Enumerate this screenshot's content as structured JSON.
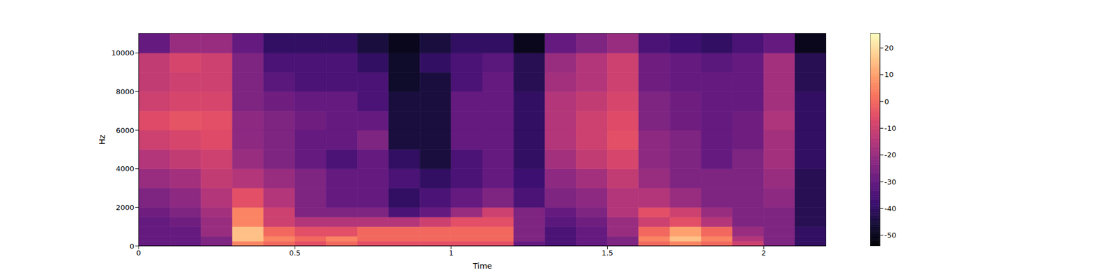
{
  "chart_data": {
    "type": "heatmap",
    "xlabel": "Time",
    "ylabel": "Hz",
    "xlim": [
      0,
      2.2
    ],
    "ylim": [
      0,
      11025
    ],
    "xticks": [
      0,
      0.5,
      1,
      1.5,
      2
    ],
    "yticks": [
      0,
      2000,
      4000,
      6000,
      8000,
      10000
    ],
    "x_edges": [
      0,
      0.1,
      0.2,
      0.3,
      0.4,
      0.5,
      0.6,
      0.7,
      0.8,
      0.9,
      1.0,
      1.1,
      1.2,
      1.3,
      1.4,
      1.5,
      1.6,
      1.7,
      1.8,
      1.9,
      2.0,
      2.1,
      2.2
    ],
    "y_edges": [
      0,
      250,
      500,
      1000,
      1500,
      2000,
      3000,
      4000,
      5000,
      6000,
      7000,
      8000,
      9000,
      10000,
      11025
    ],
    "cells": [
      [
        -30,
        -30,
        -25,
        5,
        0,
        -5,
        0,
        -5,
        -5,
        -5,
        -5,
        -5,
        -30,
        -35,
        -30,
        -25,
        0,
        5,
        0,
        -10,
        -25,
        -40
      ],
      [
        -30,
        -30,
        -25,
        15,
        5,
        0,
        5,
        0,
        0,
        0,
        0,
        0,
        -25,
        -35,
        -30,
        -25,
        5,
        15,
        5,
        -15,
        -25,
        -40
      ],
      [
        -30,
        -30,
        -20,
        15,
        0,
        -5,
        -5,
        0,
        0,
        0,
        0,
        0,
        -25,
        -35,
        -30,
        -20,
        0,
        10,
        0,
        -20,
        -25,
        -40
      ],
      [
        -30,
        -28,
        -20,
        5,
        -10,
        -15,
        -15,
        -15,
        -15,
        -10,
        -5,
        -5,
        -25,
        -32,
        -28,
        -20,
        -10,
        -5,
        -15,
        -25,
        -25,
        -42
      ],
      [
        -28,
        -25,
        -18,
        5,
        -10,
        -25,
        -25,
        -25,
        -35,
        -30,
        -20,
        -10,
        -25,
        -30,
        -25,
        -15,
        -5,
        -10,
        -20,
        -25,
        -25,
        -42
      ],
      [
        -25,
        -22,
        -15,
        -5,
        -15,
        -25,
        -30,
        -30,
        -40,
        -35,
        -30,
        -25,
        -35,
        -25,
        -22,
        -15,
        -15,
        -20,
        -25,
        -25,
        -22,
        -42
      ],
      [
        -20,
        -18,
        -12,
        -15,
        -20,
        -25,
        -30,
        -30,
        -35,
        -40,
        -35,
        -30,
        -38,
        -22,
        -18,
        -12,
        -20,
        -25,
        -25,
        -25,
        -20,
        -42
      ],
      [
        -15,
        -12,
        -10,
        -20,
        -25,
        -30,
        -35,
        -30,
        -40,
        -45,
        -35,
        -30,
        -40,
        -18,
        -12,
        -8,
        -22,
        -25,
        -30,
        -25,
        -18,
        -40
      ],
      [
        -10,
        -8,
        -6,
        -22,
        -25,
        -30,
        -30,
        -25,
        -45,
        -45,
        -30,
        -30,
        -40,
        -15,
        -10,
        -5,
        -22,
        -25,
        -30,
        -28,
        -18,
        -40
      ],
      [
        -6,
        -4,
        -5,
        -22,
        -25,
        -28,
        -30,
        -30,
        -45,
        -45,
        -30,
        -30,
        -40,
        -15,
        -10,
        -6,
        -25,
        -28,
        -30,
        -28,
        -16,
        -40
      ],
      [
        -10,
        -8,
        -8,
        -25,
        -28,
        -30,
        -30,
        -35,
        -45,
        -45,
        -30,
        -30,
        -40,
        -15,
        -12,
        -8,
        -25,
        -28,
        -30,
        -30,
        -18,
        -40
      ],
      [
        -12,
        -10,
        -10,
        -25,
        -32,
        -35,
        -35,
        -35,
        -48,
        -45,
        -35,
        -30,
        -42,
        -18,
        -15,
        -10,
        -28,
        -30,
        -30,
        -30,
        -18,
        -42
      ],
      [
        -12,
        -8,
        -10,
        -25,
        -35,
        -35,
        -35,
        -40,
        -48,
        -40,
        -35,
        -32,
        -42,
        -20,
        -15,
        -10,
        -28,
        -30,
        -32,
        -30,
        -18,
        -42
      ],
      [
        -30,
        -20,
        -20,
        -30,
        -40,
        -40,
        -40,
        -45,
        -50,
        -45,
        -40,
        -40,
        -50,
        -30,
        -25,
        -20,
        -35,
        -38,
        -40,
        -35,
        -30,
        -50
      ]
    ],
    "colorbar": {
      "range": [
        -54,
        25.5
      ],
      "ticks": [
        -50,
        -40,
        -30,
        -20,
        -10,
        0,
        10,
        20
      ]
    }
  }
}
